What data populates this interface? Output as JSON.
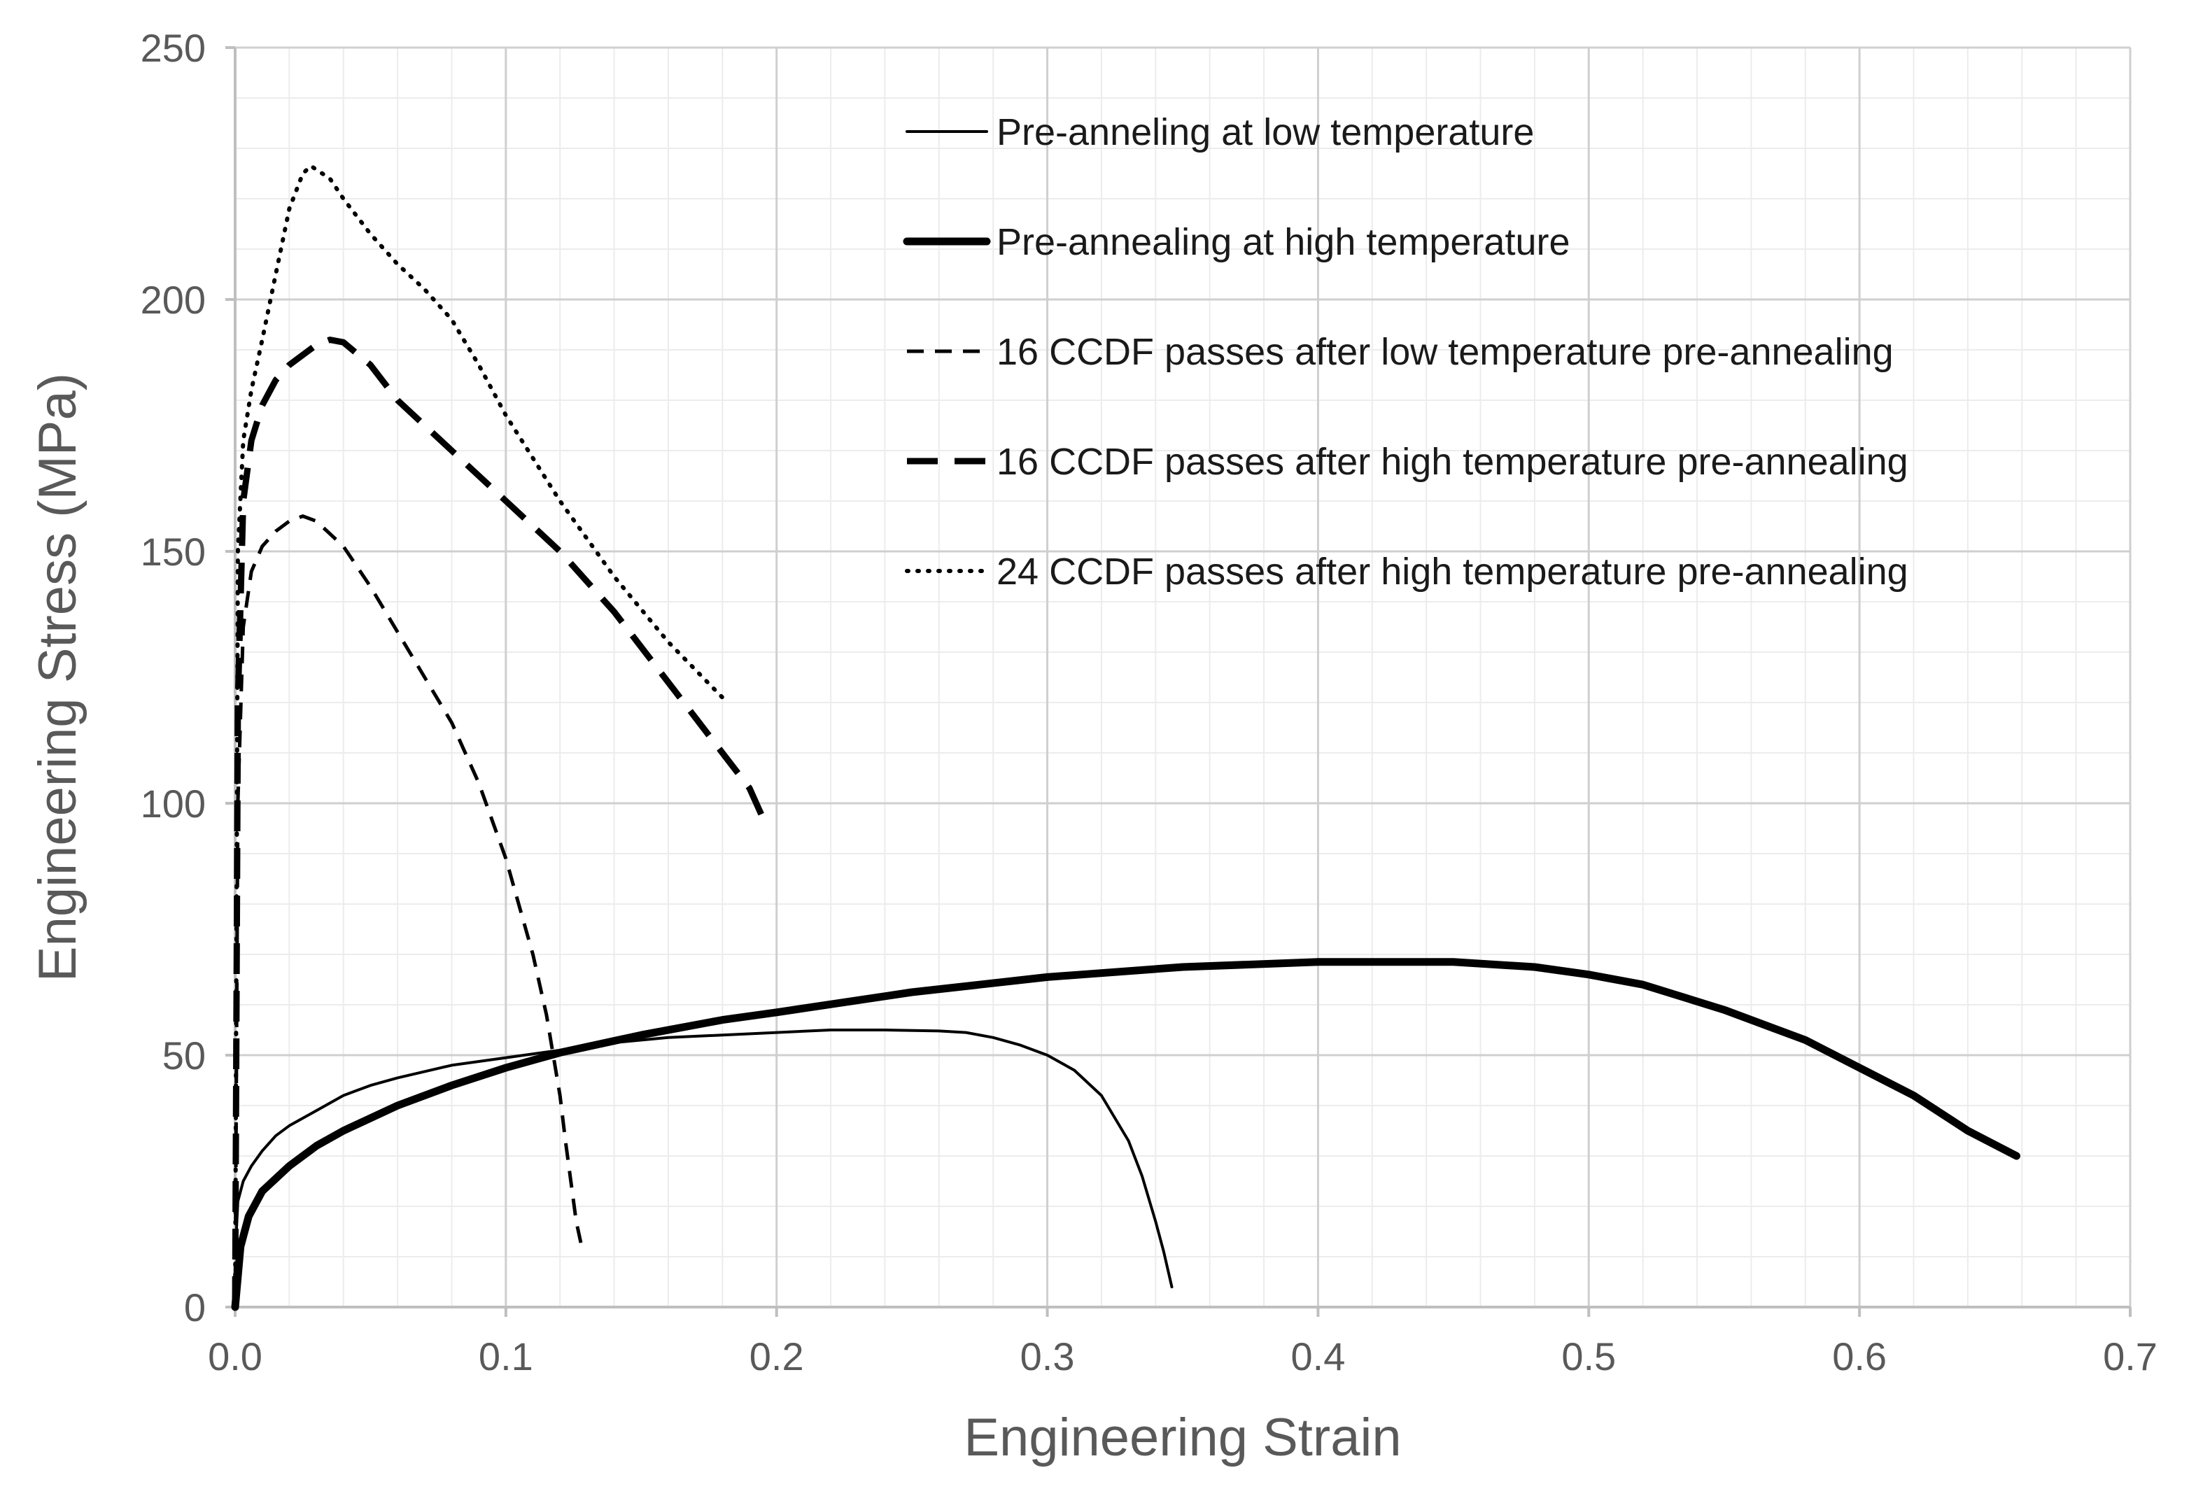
{
  "chart_data": {
    "type": "line",
    "title": "",
    "xlabel": "Engineering Strain",
    "ylabel": "Engineering Stress (MPa)",
    "xlim": [
      0,
      0.7
    ],
    "ylim": [
      0,
      250
    ],
    "xticks": [
      0.0,
      0.1,
      0.2,
      0.3,
      0.4,
      0.5,
      0.6,
      0.7
    ],
    "xtick_labels": [
      "0.0",
      "0.1",
      "0.2",
      "0.3",
      "0.4",
      "0.5",
      "0.6",
      "0.7"
    ],
    "yticks": [
      0,
      50,
      100,
      150,
      200,
      250
    ],
    "ytick_labels": [
      "0",
      "50",
      "100",
      "150",
      "200",
      "250"
    ],
    "minor_x_step": 0.02,
    "minor_y_step": 10,
    "grid": true,
    "legend_position": "top-right",
    "series": [
      {
        "name": "Pre-anneling at low temperature",
        "style": "solid-thin",
        "color": "#000000",
        "x": [
          0.0,
          0.001,
          0.003,
          0.006,
          0.01,
          0.015,
          0.02,
          0.03,
          0.04,
          0.05,
          0.06,
          0.08,
          0.1,
          0.12,
          0.14,
          0.16,
          0.18,
          0.2,
          0.22,
          0.24,
          0.26,
          0.27,
          0.28,
          0.29,
          0.3,
          0.31,
          0.32,
          0.33,
          0.335,
          0.34,
          0.343,
          0.346
        ],
        "y": [
          10,
          21,
          25,
          28,
          31,
          34,
          36,
          39,
          42,
          44,
          45.5,
          48,
          49.5,
          51,
          52.5,
          53.5,
          54,
          54.5,
          55,
          55,
          54.8,
          54.5,
          53.5,
          52,
          50,
          47,
          42,
          33,
          26,
          17,
          11,
          4
        ]
      },
      {
        "name": "Pre-annealing at high temperature",
        "style": "solid-thick",
        "color": "#000000",
        "x": [
          0.0,
          0.002,
          0.005,
          0.01,
          0.02,
          0.03,
          0.04,
          0.06,
          0.08,
          0.1,
          0.12,
          0.15,
          0.18,
          0.2,
          0.25,
          0.3,
          0.35,
          0.4,
          0.45,
          0.48,
          0.5,
          0.52,
          0.55,
          0.58,
          0.6,
          0.62,
          0.64,
          0.658
        ],
        "y": [
          0,
          12,
          18,
          23,
          28,
          32,
          35,
          40,
          44,
          47.5,
          50.5,
          54,
          57,
          58.5,
          62.5,
          65.5,
          67.5,
          68.5,
          68.5,
          67.5,
          66,
          64,
          59,
          53,
          47.5,
          42,
          35,
          30
        ]
      },
      {
        "name": "16 CCDF passes after low temperature pre-annealing",
        "style": "dashed-thin",
        "color": "#000000",
        "x": [
          0.0,
          0.001,
          0.003,
          0.006,
          0.01,
          0.015,
          0.02,
          0.025,
          0.03,
          0.04,
          0.05,
          0.06,
          0.07,
          0.08,
          0.09,
          0.1,
          0.11,
          0.115,
          0.12,
          0.122,
          0.124,
          0.126,
          0.128
        ],
        "y": [
          0,
          100,
          135,
          146,
          151,
          154,
          156,
          157,
          156,
          151,
          143,
          134,
          125,
          116,
          104,
          89,
          70,
          58,
          42,
          33,
          25,
          17,
          12
        ]
      },
      {
        "name": "16 CCDF passes after high temperature pre-annealing",
        "style": "dashed-thick",
        "color": "#000000",
        "x": [
          0.0,
          0.001,
          0.003,
          0.006,
          0.01,
          0.015,
          0.02,
          0.03,
          0.035,
          0.04,
          0.05,
          0.06,
          0.07,
          0.08,
          0.09,
          0.1,
          0.12,
          0.14,
          0.16,
          0.18,
          0.19,
          0.195
        ],
        "y": [
          0,
          120,
          160,
          172,
          179,
          184,
          187,
          191,
          192,
          191.5,
          187,
          180,
          175,
          170,
          165,
          160,
          150,
          138,
          124,
          110,
          103,
          97
        ]
      },
      {
        "name": "24 CCDF passes after high temperature pre-annealing",
        "style": "dotted",
        "color": "#000000",
        "x": [
          0.0,
          0.001,
          0.003,
          0.006,
          0.01,
          0.015,
          0.02,
          0.025,
          0.028,
          0.035,
          0.04,
          0.05,
          0.06,
          0.07,
          0.08,
          0.09,
          0.1,
          0.12,
          0.14,
          0.16,
          0.18
        ],
        "y": [
          0,
          150,
          172,
          182,
          192,
          205,
          218,
          225,
          226.5,
          224,
          220,
          213,
          207,
          202,
          196,
          187,
          177,
          160,
          145,
          132,
          121
        ]
      }
    ]
  }
}
